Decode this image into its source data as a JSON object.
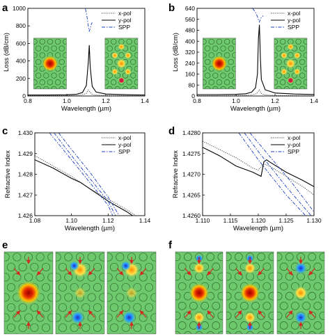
{
  "panel_labels": [
    "a",
    "b",
    "c",
    "d",
    "e",
    "f"
  ],
  "colors": {
    "x_pol": "#333333",
    "y_pol": "#000000",
    "spp": "#1a3fbf",
    "field_bg": "#6ec86e",
    "hole_edge": "#2f6b2f",
    "arrow": "#d4281c"
  },
  "chart_data": [
    {
      "id": "a",
      "type": "line",
      "xlabel": "Wavelength (µm)",
      "ylabel": "Loss (dB/cm)",
      "xlim": [
        0.8,
        1.4
      ],
      "ylim": [
        0,
        1000
      ],
      "xticks": [
        "0.8",
        "1.0",
        "1.2",
        "1.4"
      ],
      "yticks": [
        "0",
        "200",
        "400",
        "600",
        "800",
        "1000"
      ],
      "legend_position": "top-right",
      "legend": [
        "x-pol",
        "y-pol",
        "SPP"
      ],
      "series": [
        {
          "name": "x-pol",
          "style": "dotted",
          "x": [
            0.8,
            0.9,
            1.0,
            1.05,
            1.08,
            1.1,
            1.11,
            1.12,
            1.13,
            1.15,
            1.2,
            1.3,
            1.4
          ],
          "y": [
            4,
            4,
            5,
            8,
            14,
            30,
            70,
            40,
            18,
            10,
            6,
            5,
            4
          ]
        },
        {
          "name": "y-pol",
          "style": "solid",
          "x": [
            0.8,
            0.9,
            1.0,
            1.05,
            1.08,
            1.1,
            1.11,
            1.115,
            1.12,
            1.13,
            1.15,
            1.2,
            1.3,
            1.4
          ],
          "y": [
            12,
            12,
            14,
            20,
            40,
            120,
            380,
            580,
            330,
            110,
            45,
            22,
            15,
            12
          ]
        },
        {
          "name": "SPP",
          "style": "dashdot",
          "x": [
            1.095,
            1.1,
            1.105,
            1.11,
            1.115,
            1.12,
            1.125,
            1.13
          ],
          "y": [
            995,
            950,
            880,
            800,
            740,
            770,
            815,
            840
          ]
        }
      ],
      "insets": [
        {
          "field": "y-pol core mode",
          "arrows": false
        },
        {
          "field": "SPP mode",
          "arrows": false
        }
      ]
    },
    {
      "id": "b",
      "type": "line",
      "xlabel": "Wavelength (µm)",
      "ylabel": "Loss (dB/cm)",
      "xlim": [
        0.8,
        1.4
      ],
      "ylim": [
        0,
        640
      ],
      "xticks": [
        "0.8",
        "1.0",
        "1.2",
        "1.4"
      ],
      "yticks": [
        "0",
        "80",
        "160",
        "240",
        "320",
        "400",
        "480",
        "560",
        "640"
      ],
      "legend_position": "top-right",
      "legend": [
        "x-pol",
        "y-pol",
        "SPP"
      ],
      "series": [
        {
          "name": "x-pol",
          "style": "dotted",
          "x": [
            0.8,
            0.9,
            1.0,
            1.05,
            1.08,
            1.1,
            1.11,
            1.12,
            1.13,
            1.15,
            1.2,
            1.3,
            1.4
          ],
          "y": [
            2,
            2,
            3,
            5,
            8,
            14,
            25,
            45,
            18,
            8,
            4,
            3,
            2
          ]
        },
        {
          "name": "y-pol",
          "style": "solid",
          "x": [
            0.8,
            0.9,
            1.0,
            1.05,
            1.08,
            1.1,
            1.11,
            1.115,
            1.12,
            1.125,
            1.13,
            1.15,
            1.2,
            1.3,
            1.4
          ],
          "y": [
            10,
            10,
            12,
            16,
            28,
            60,
            160,
            420,
            520,
            280,
            120,
            45,
            22,
            14,
            11
          ]
        },
        {
          "name": "SPP",
          "style": "dashdot",
          "x": [
            1.085,
            1.1,
            1.11,
            1.115,
            1.12,
            1.125,
            1.13,
            1.14
          ],
          "y": [
            640,
            610,
            580,
            555,
            540,
            560,
            575,
            585
          ]
        }
      ],
      "insets": [
        {
          "field": "y-pol core mode",
          "arrows": false
        },
        {
          "field": "SPP mode",
          "arrows": false
        }
      ]
    },
    {
      "id": "c",
      "type": "line",
      "xlabel": "Wavelength (µm)",
      "ylabel": "Refractive Index",
      "xlim": [
        1.08,
        1.14
      ],
      "ylim": [
        1.426,
        1.43
      ],
      "xticks": [
        "1.08",
        "1.10",
        "1.12",
        "1.14"
      ],
      "yticks": [
        "1.426",
        "1.427",
        "1.428",
        "1.429",
        "1.430"
      ],
      "legend_position": "top-right",
      "legend": [
        "x-pol",
        "y-pol",
        "SPP"
      ],
      "series": [
        {
          "name": "x-pol",
          "style": "dotted",
          "x": [
            1.08,
            1.09,
            1.1,
            1.11,
            1.12,
            1.13,
            1.14
          ],
          "y": [
            1.4289,
            1.4284,
            1.4279,
            1.4273,
            1.4268,
            1.4263,
            1.4257
          ]
        },
        {
          "name": "y-pol",
          "style": "solid",
          "x": [
            1.08,
            1.09,
            1.1,
            1.105,
            1.11,
            1.115,
            1.12,
            1.13,
            1.14
          ],
          "y": [
            1.4287,
            1.4283,
            1.4278,
            1.4276,
            1.4273,
            1.427,
            1.4267,
            1.4262,
            1.4256
          ]
        },
        {
          "name": "SPP",
          "style": "dashdot",
          "x": [
            1.088,
            1.1,
            1.11,
            1.12,
            1.1225
          ],
          "y": [
            1.43,
            1.4287,
            1.4276,
            1.4265,
            1.426
          ]
        },
        {
          "name": "SPP",
          "style": "dashdot",
          "x": [
            1.0905,
            1.1,
            1.11,
            1.12,
            1.124
          ],
          "y": [
            1.43,
            1.4289,
            1.4278,
            1.4267,
            1.426
          ]
        },
        {
          "name": "SPP",
          "style": "dashdot",
          "x": [
            1.093,
            1.1,
            1.11,
            1.12,
            1.126
          ],
          "y": [
            1.43,
            1.4292,
            1.4281,
            1.4269,
            1.426
          ]
        }
      ]
    },
    {
      "id": "d",
      "type": "line",
      "xlabel": "Wavelength (µm)",
      "ylabel": "Refractive Index",
      "xlim": [
        1.11,
        1.13
      ],
      "ylim": [
        1.426,
        1.428
      ],
      "xticks": [
        "1.110",
        "1.115",
        "1.120",
        "1.125",
        "1.130"
      ],
      "yticks": [
        "1.4260",
        "1.4265",
        "1.4270",
        "1.4275",
        "1.4280"
      ],
      "legend_position": "top-right",
      "legend": [
        "x-pol",
        "y-pol",
        "SPP"
      ],
      "series": [
        {
          "name": "x-pol",
          "style": "dotted",
          "x": [
            1.11,
            1.113,
            1.116,
            1.119,
            1.12,
            1.121,
            1.122,
            1.125,
            1.128,
            1.13
          ],
          "y": [
            1.4278,
            1.4276,
            1.4274,
            1.42715,
            1.4271,
            1.42725,
            1.4272,
            1.42695,
            1.4267,
            1.4265
          ]
        },
        {
          "name": "y-pol",
          "style": "solid",
          "x": [
            1.11,
            1.113,
            1.116,
            1.119,
            1.1205,
            1.121,
            1.1215,
            1.122,
            1.125,
            1.128,
            1.13
          ],
          "y": [
            1.42765,
            1.42745,
            1.4272,
            1.42705,
            1.42695,
            1.4273,
            1.42735,
            1.4273,
            1.42705,
            1.42685,
            1.4267
          ]
        },
        {
          "name": "SPP",
          "style": "dashdot",
          "x": [
            1.1165,
            1.12,
            1.125,
            1.1285
          ],
          "y": [
            1.428,
            1.42735,
            1.4265,
            1.426
          ]
        },
        {
          "name": "SPP",
          "style": "dashdot",
          "x": [
            1.1175,
            1.12,
            1.125,
            1.1295
          ],
          "y": [
            1.428,
            1.42755,
            1.4267,
            1.426
          ]
        },
        {
          "name": "SPP",
          "style": "dashdot",
          "x": [
            1.1185,
            1.121,
            1.126,
            1.1305
          ],
          "y": [
            1.428,
            1.4276,
            1.4268,
            1.426
          ]
        }
      ]
    }
  ],
  "field_maps": [
    {
      "id": "e",
      "panels": [
        {
          "kind": "core",
          "arrows": true
        },
        {
          "kind": "antisymmetric",
          "arrows": true
        },
        {
          "kind": "antisymmetric",
          "arrows": true
        }
      ]
    },
    {
      "id": "f",
      "panels": [
        {
          "kind": "core-dual",
          "arrows": true
        },
        {
          "kind": "core-dual",
          "arrows": true
        },
        {
          "kind": "mixed",
          "arrows": true
        }
      ]
    }
  ]
}
